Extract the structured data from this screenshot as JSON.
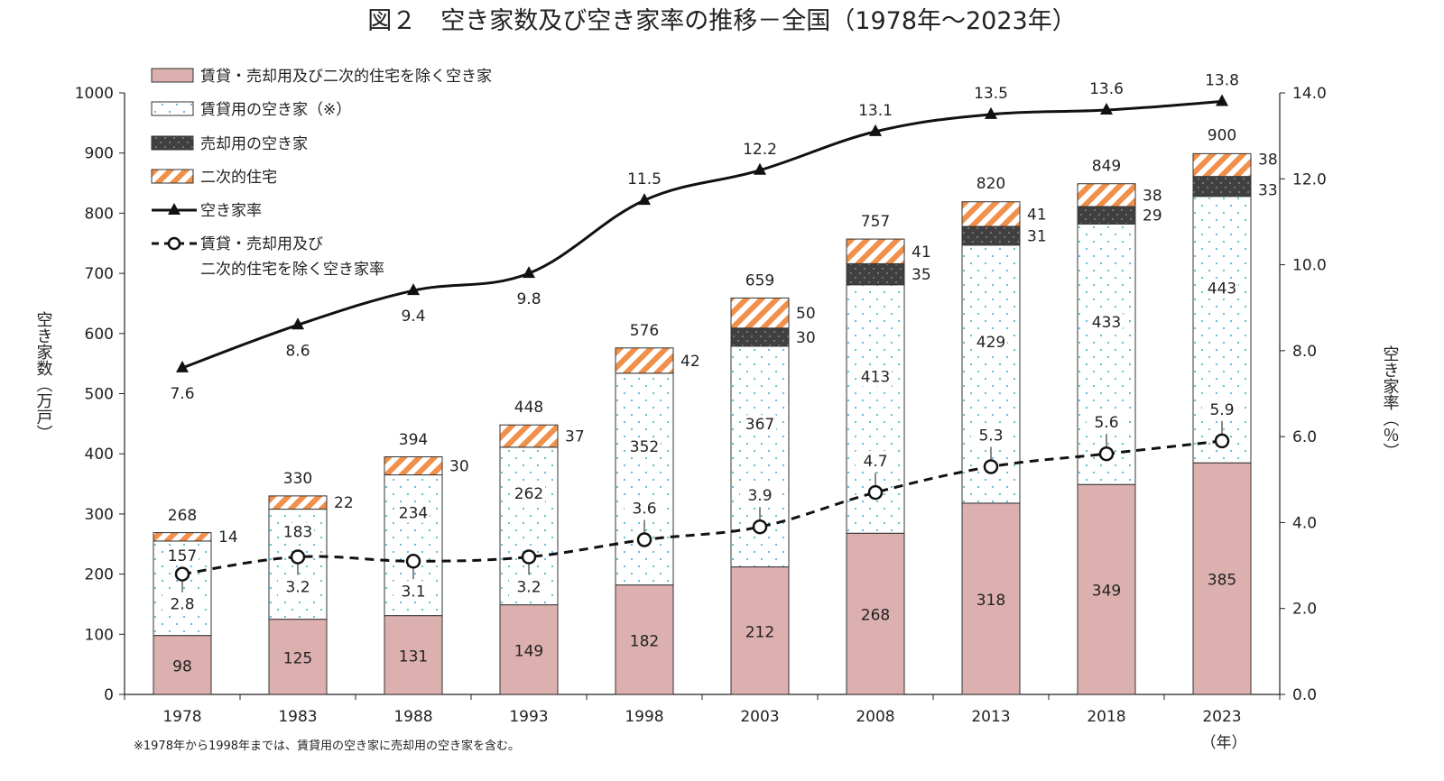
{
  "chart_data": {
    "type": "bar",
    "title": "図２　空き家数及び空き家率の推移－全国（1978年～2023年）",
    "ylabel_left": "空き家数（万戸）",
    "ylabel_right": "空き家率（％）",
    "xunit": "（年）",
    "note": "※1978年から1998年までは、賃貸用の空き家に売却用の空き家を含む。",
    "ylim_left": [
      0,
      1000
    ],
    "ylim_right": [
      0,
      14
    ],
    "yticks_left": [
      "0",
      "100",
      "200",
      "300",
      "400",
      "500",
      "600",
      "700",
      "800",
      "900",
      "1000"
    ],
    "yticks_right": [
      "0.0",
      "2.0",
      "4.0",
      "6.0",
      "8.0",
      "10.0",
      "12.0",
      "14.0"
    ],
    "categories": [
      "1978",
      "1983",
      "1988",
      "1993",
      "1998",
      "2003",
      "2008",
      "2013",
      "2018",
      "2023"
    ],
    "totals": [
      268,
      330,
      394,
      448,
      576,
      659,
      757,
      820,
      849,
      900
    ],
    "series": [
      {
        "name": "賃貸・売却用及び二次的住宅を除く空き家",
        "type": "bar",
        "color": "#ddb0b0",
        "values": [
          98,
          125,
          131,
          149,
          182,
          212,
          268,
          318,
          349,
          385
        ]
      },
      {
        "name": "賃貸用の空き家（※）",
        "type": "bar",
        "color": "#5bb8d4",
        "values": [
          157,
          183,
          234,
          262,
          352,
          367,
          413,
          429,
          433,
          443
        ]
      },
      {
        "name": "売却用の空き家",
        "type": "bar",
        "color": "#404040",
        "values": [
          null,
          null,
          null,
          null,
          null,
          30,
          35,
          31,
          29,
          33
        ]
      },
      {
        "name": "二次的住宅",
        "type": "bar",
        "color": "#f0904a",
        "values": [
          14,
          22,
          30,
          37,
          42,
          50,
          41,
          41,
          38,
          38
        ]
      },
      {
        "name": "空き家率",
        "type": "line",
        "axis": "right",
        "values": [
          7.6,
          8.6,
          9.4,
          9.8,
          11.5,
          12.2,
          13.1,
          13.5,
          13.6,
          13.8
        ],
        "labels": [
          "7.6",
          "8.6",
          "9.4",
          "9.8",
          "11.5",
          "12.2",
          "13.1",
          "13.5",
          "13.6",
          "13.8"
        ]
      },
      {
        "name": "賃貸・売却用及び二次的住宅を除く空き家率",
        "legend_lines": [
          "賃貸・売却用及び",
          "二次的住宅を除く空き家率"
        ],
        "type": "line",
        "axis": "right",
        "dashed": true,
        "values": [
          2.8,
          3.2,
          3.1,
          3.2,
          3.6,
          3.9,
          4.7,
          5.3,
          5.6,
          5.9
        ],
        "labels": [
          "2.8",
          "3.2",
          "3.1",
          "3.2",
          "3.6",
          "3.9",
          "4.7",
          "5.3",
          "5.6",
          "5.9"
        ]
      }
    ]
  }
}
